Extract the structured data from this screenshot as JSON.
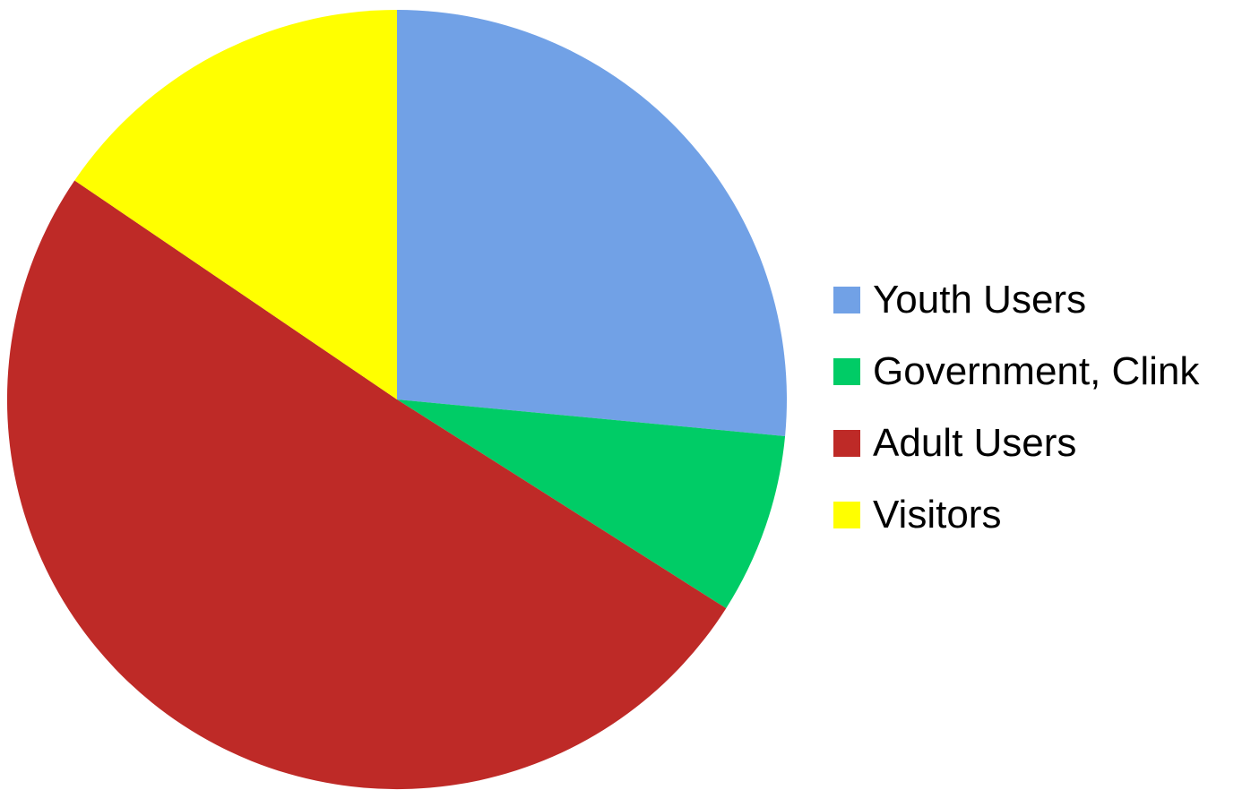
{
  "chart_data": {
    "type": "pie",
    "categories": [
      "Youth Users",
      "Government, Clink",
      "Adult Users",
      "Visitors"
    ],
    "values": [
      26.5,
      7.5,
      50.5,
      15.5
    ],
    "colors": [
      "#71A1E6",
      "#00CC66",
      "#BE2A27",
      "#FFFF00"
    ],
    "start_angle_deg": 0,
    "direction": "clockwise",
    "legend_position": "right"
  }
}
